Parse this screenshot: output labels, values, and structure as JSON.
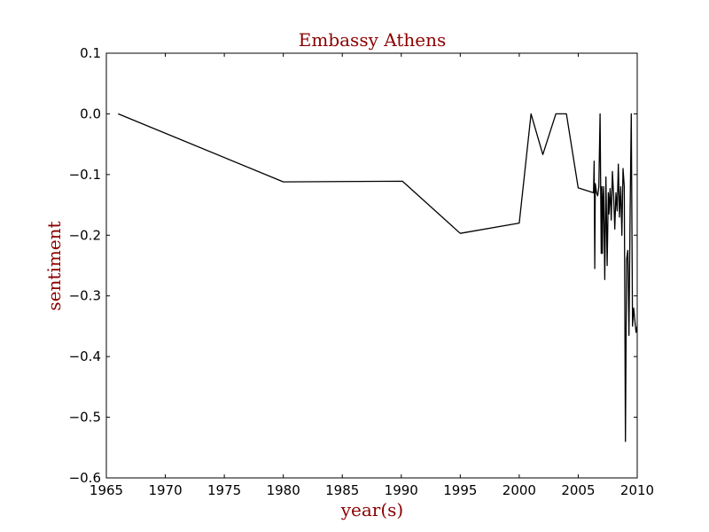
{
  "chart_data": {
    "type": "line",
    "title": "Embassy Athens",
    "xlabel": "year(s)",
    "ylabel": "sentiment",
    "xlim": [
      1965,
      2010
    ],
    "ylim": [
      -0.6,
      0.1
    ],
    "xticks": [
      "1965",
      "1970",
      "1975",
      "1980",
      "1985",
      "1990",
      "1995",
      "2000",
      "2005",
      "2010"
    ],
    "yticks": [
      "0.1",
      "0.0",
      "−0.1",
      "−0.2",
      "−0.3",
      "−0.4",
      "−0.5",
      "−0.6"
    ],
    "grid": false,
    "line_color": "#000000",
    "title_color": "#8b0000",
    "series": [
      {
        "x": [
          1966.0,
          1980.0,
          1990.1,
          1995.0,
          2000.0,
          2001.0,
          2002.0,
          2003.1,
          2004.0,
          2005.0,
          2006.3,
          2006.35,
          2006.4,
          2006.45,
          2006.55,
          2006.65,
          2006.75,
          2006.85,
          2006.95,
          2007.0,
          2007.05,
          2007.1,
          2007.15,
          2007.25,
          2007.35,
          2007.45,
          2007.55,
          2007.6,
          2007.7,
          2007.8,
          2007.9,
          2008.0,
          2008.1,
          2008.2,
          2008.3,
          2008.4,
          2008.5,
          2008.6,
          2008.7,
          2008.8,
          2008.9,
          2009.0,
          2009.1,
          2009.2,
          2009.3,
          2009.4,
          2009.5,
          2009.6,
          2009.7,
          2009.8,
          2009.9,
          2010.0
        ],
        "y": [
          0.0,
          -0.112,
          -0.111,
          -0.197,
          -0.18,
          0.0,
          -0.067,
          0.0,
          0.0,
          -0.122,
          -0.13,
          -0.078,
          -0.255,
          -0.115,
          -0.13,
          -0.135,
          -0.12,
          0.0,
          -0.23,
          -0.12,
          -0.23,
          -0.14,
          -0.12,
          -0.273,
          -0.104,
          -0.25,
          -0.13,
          -0.165,
          -0.123,
          -0.175,
          -0.095,
          -0.135,
          -0.19,
          -0.13,
          -0.16,
          -0.083,
          -0.17,
          -0.12,
          -0.2,
          -0.09,
          -0.12,
          -0.54,
          -0.24,
          -0.225,
          -0.365,
          -0.16,
          0.0,
          -0.35,
          -0.32,
          -0.34,
          -0.36,
          -0.35
        ]
      }
    ]
  }
}
